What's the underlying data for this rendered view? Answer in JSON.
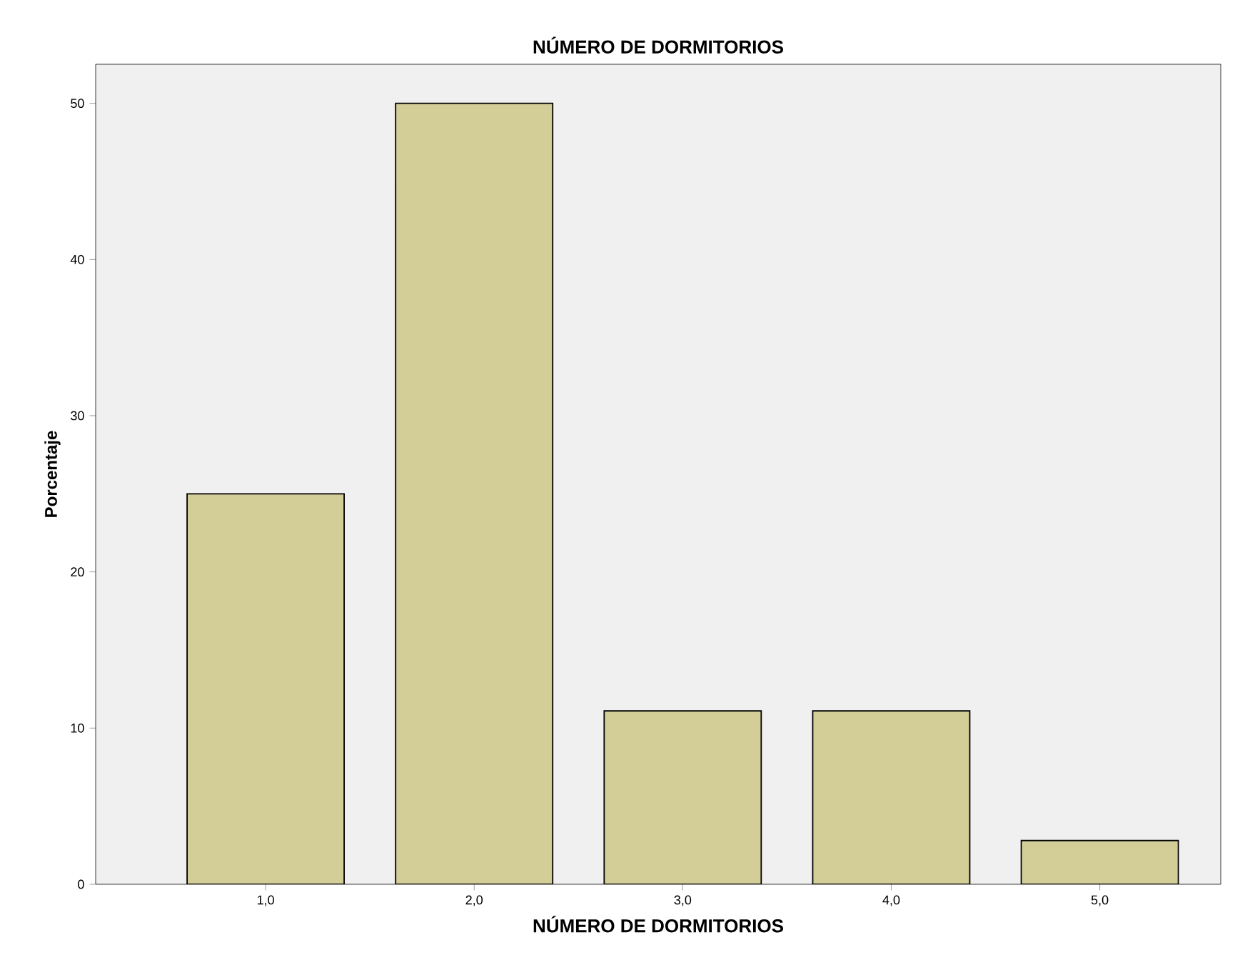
{
  "chart_data": {
    "type": "bar",
    "title": "NÚMERO DE DORMITORIOS",
    "xlabel": "NÚMERO DE DORMITORIOS",
    "ylabel": "Porcentaje",
    "categories": [
      "1,0",
      "2,0",
      "3,0",
      "4,0",
      "5,0"
    ],
    "values": [
      25,
      50,
      11.1,
      11.1,
      2.8
    ],
    "color": "#d3ce97",
    "ylim": [
      0,
      52.5
    ],
    "yticks": [
      0,
      10,
      20,
      30,
      40,
      50
    ],
    "grid": false
  }
}
